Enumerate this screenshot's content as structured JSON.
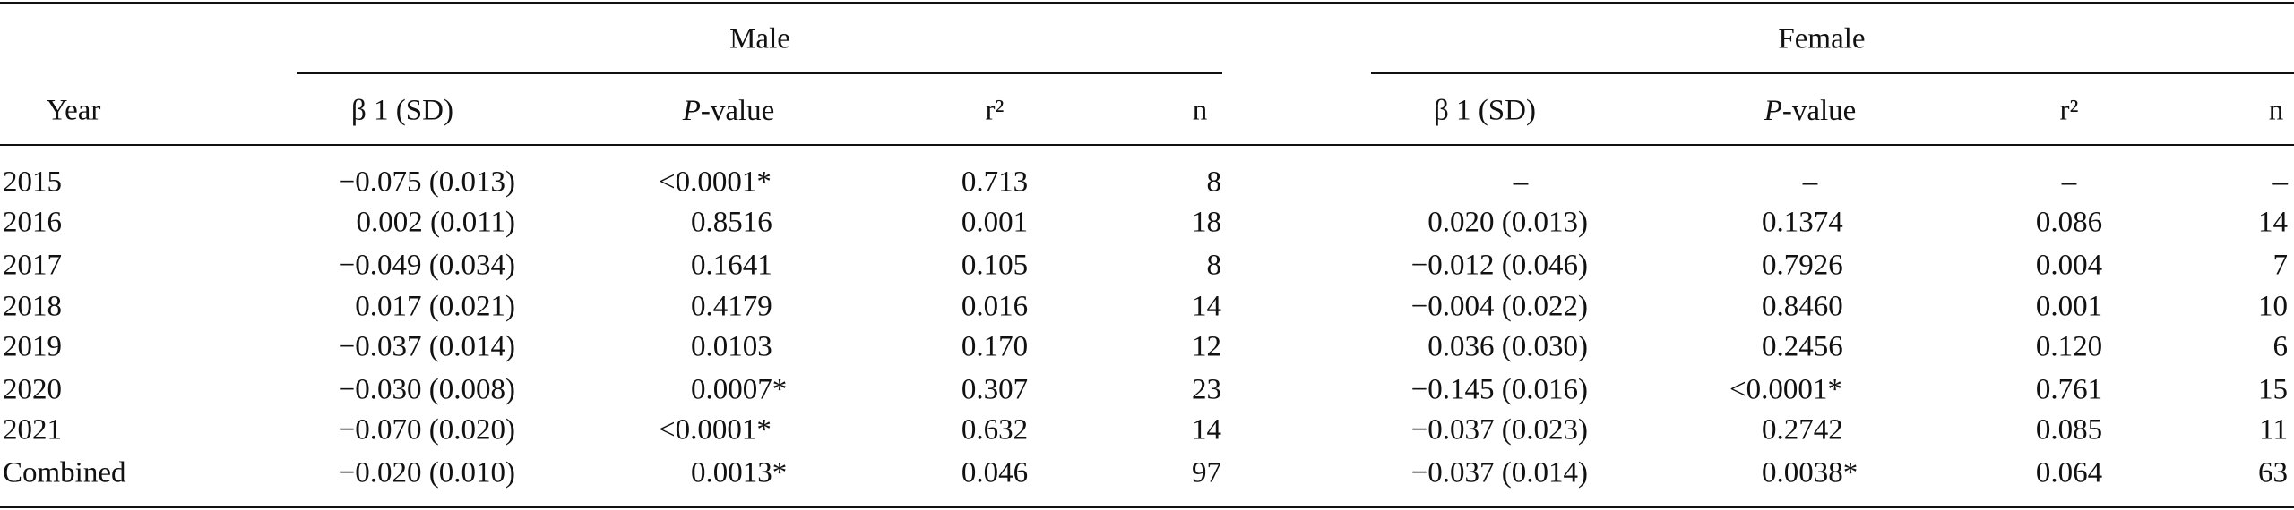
{
  "table": {
    "group_headers": [
      "Male",
      "Female"
    ],
    "columns": [
      "Year",
      "β 1 (SD)",
      {
        "italic": "P",
        "text": "-value"
      },
      "r²",
      "n",
      "β 1 (SD)",
      {
        "italic": "P",
        "text": "-value"
      },
      "r²",
      "n"
    ],
    "rows": [
      [
        "2015",
        "−0.075 (0.013)",
        "<0.0001*",
        "0.713",
        "8",
        "–",
        "–",
        "–",
        "–"
      ],
      [
        "2016",
        "0.002 (0.011)",
        "0.8516",
        "0.001",
        "18",
        "0.020 (0.013)",
        "0.1374",
        "0.086",
        "14"
      ],
      [
        "2017",
        "−0.049 (0.034)",
        "0.1641",
        "0.105",
        "8",
        "−0.012 (0.046)",
        "0.7926",
        "0.004",
        "7"
      ],
      [
        "2018",
        "0.017 (0.021)",
        "0.4179",
        "0.016",
        "14",
        "−0.004 (0.022)",
        "0.8460",
        "0.001",
        "10"
      ],
      [
        "2019",
        "−0.037 (0.014)",
        "0.0103",
        "0.170",
        "12",
        "0.036 (0.030)",
        "0.2456",
        "0.120",
        "6"
      ],
      [
        "2020",
        "−0.030 (0.008)",
        "0.0007*",
        "0.307",
        "23",
        "−0.145 (0.016)",
        "<0.0001*",
        "0.761",
        "15"
      ],
      [
        "2021",
        "−0.070 (0.020)",
        "<0.0001*",
        "0.632",
        "14",
        "−0.037 (0.023)",
        "0.2742",
        "0.085",
        "11"
      ],
      [
        "Combined",
        "−0.020 (0.010)",
        "0.0013*",
        "0.046",
        "97",
        "−0.037 (0.014)",
        "0.0038*",
        "0.064",
        "63"
      ]
    ]
  }
}
